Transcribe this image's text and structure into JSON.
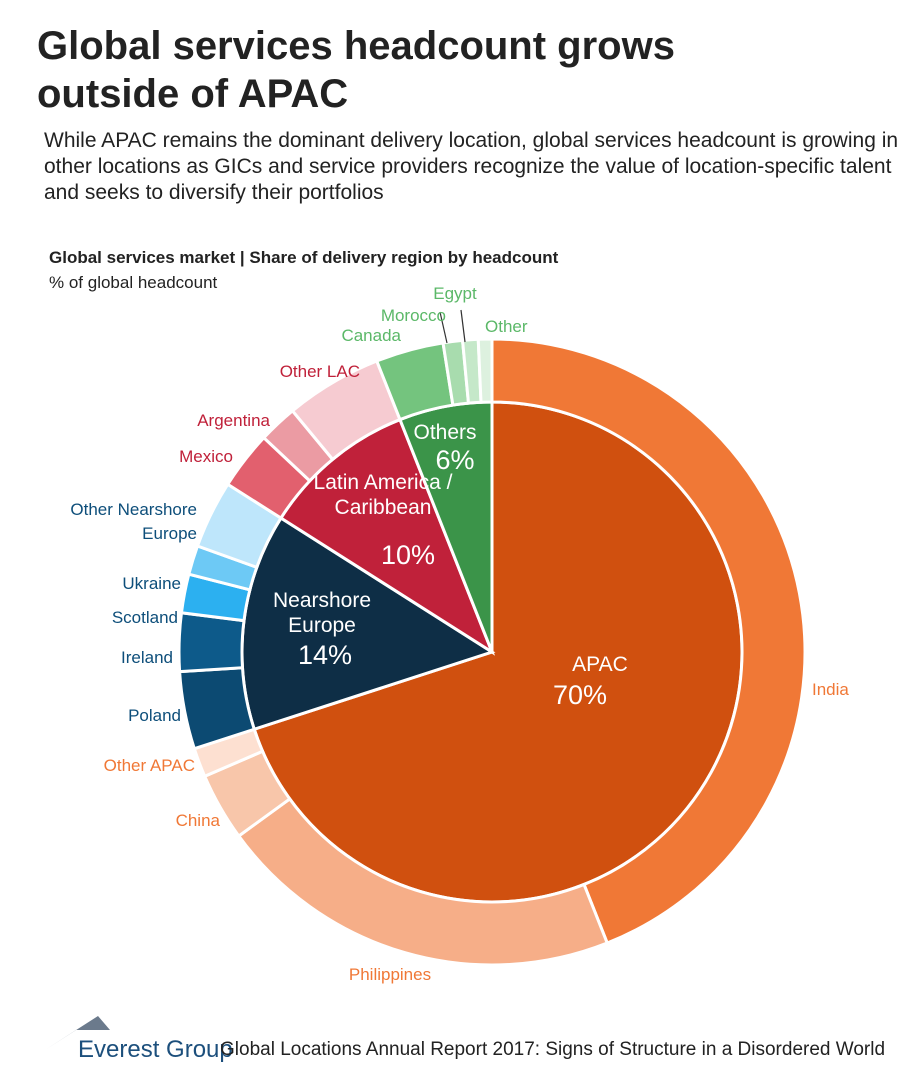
{
  "title": "Global services headcount grows outside of APAC",
  "subtitle": "While APAC remains the dominant delivery location, global services headcount is growing in other locations as GICs and service providers recognize the value of location-specific talent and seeks to diversify their portfolios",
  "footer": {
    "brand": "Everest Group",
    "source": "Global Locations Annual Report 2017: Signs of Structure in a Disordered World"
  },
  "chart_data": {
    "type": "pie",
    "title": "Global services market | Share of delivery region by headcount",
    "subtitle": "% of global headcount",
    "categories": [
      "APAC",
      "Nearshore Europe",
      "Latin America / Caribbean",
      "Others"
    ],
    "values": [
      70,
      14,
      10,
      6
    ],
    "value_labels": [
      "70%",
      "14%",
      "10%",
      "6%"
    ],
    "colors": [
      "#d0500f",
      "#0e2e46",
      "#c0213a",
      "#3b9449"
    ],
    "outer": {
      "categories": [
        "India",
        "Philippines",
        "China",
        "Other APAC",
        "Poland",
        "Ireland",
        "Scotland",
        "Ukraine",
        "Other Nearshore Europe",
        "Mexico",
        "Argentina",
        "Other LAC",
        "Canada",
        "Morocco",
        "Egypt",
        "Other"
      ],
      "values": [
        44,
        21,
        3.5,
        1.5,
        4,
        3,
        2,
        1.5,
        3.5,
        3,
        2,
        5,
        3.5,
        1,
        0.8,
        0.7
      ],
      "colors": [
        "#f07836",
        "#f6ae88",
        "#f8c6aa",
        "#fde0d1",
        "#0c4a72",
        "#0d5a8a",
        "#2cb0f0",
        "#6dc9f5",
        "#bee6fb",
        "#e2606e",
        "#eb9ba3",
        "#f6cbd1",
        "#74c47e",
        "#a8dcae",
        "#c5e8c9",
        "#ddf1df"
      ],
      "label_colors": [
        "#f07836",
        "#f07836",
        "#f07836",
        "#f07836",
        "#0d4e7a",
        "#0d4e7a",
        "#0d4e7a",
        "#0d4e7a",
        "#0d4e7a",
        "#c0213a",
        "#c0213a",
        "#c0213a",
        "#5bb868",
        "#5bb868",
        "#5bb868",
        "#5bb868"
      ]
    }
  }
}
